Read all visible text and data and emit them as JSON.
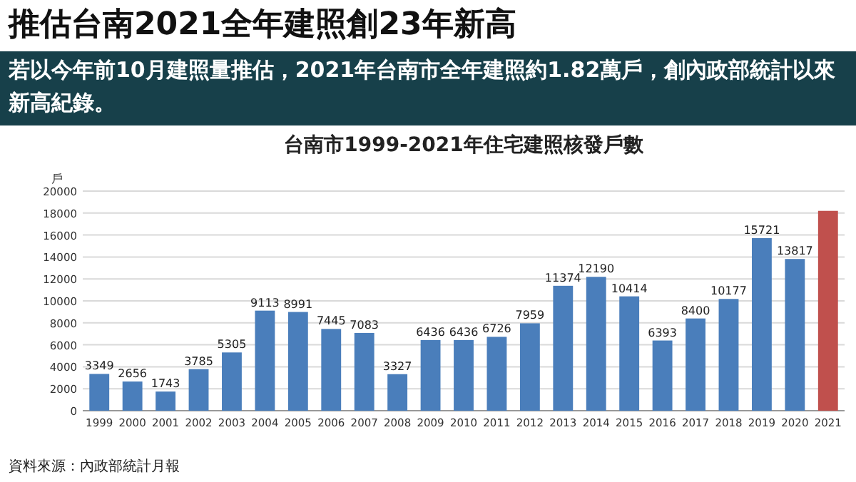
{
  "chart_data": {
    "type": "bar",
    "title": "推估台南2021全年建照創23年新高",
    "subtitle": "若以今年前10月建照量推估，2021年台南市全年建照約1.82萬戶，創內政部統計以來新高紀錄。",
    "xlabel": "台南市1999-2021年住宅建照核發戶數",
    "ylabel": "戶",
    "annotations": [
      "資料來源：內政部統計月報"
    ],
    "categories": [
      "1999",
      "2000",
      "2001",
      "2002",
      "2003",
      "2004",
      "2005",
      "2006",
      "2007",
      "2008",
      "2009",
      "2010",
      "2011",
      "2012",
      "2013",
      "2014",
      "2015",
      "2016",
      "2017",
      "2018",
      "2019",
      "2020",
      "2021"
    ],
    "values": [
      3349,
      2656,
      1743,
      3785,
      5305,
      9113,
      8991,
      7445,
      7083,
      3327,
      6436,
      6436,
      6726,
      7959,
      11374,
      12190,
      10414,
      6393,
      8400,
      10177,
      15721,
      13817,
      18200
    ],
    "value_labels": [
      "3349",
      "2656",
      "1743",
      "3785",
      "5305",
      "9113",
      "8991",
      "7445",
      "7083",
      "3327",
      "6436",
      "6436",
      "6726",
      "7959",
      "11374",
      "12190",
      "10414",
      "6393",
      "8400",
      "10177",
      "15721",
      "13817",
      null
    ],
    "colors": [
      "#4a7ebb",
      "#4a7ebb",
      "#4a7ebb",
      "#4a7ebb",
      "#4a7ebb",
      "#4a7ebb",
      "#4a7ebb",
      "#4a7ebb",
      "#4a7ebb",
      "#4a7ebb",
      "#4a7ebb",
      "#4a7ebb",
      "#4a7ebb",
      "#4a7ebb",
      "#4a7ebb",
      "#4a7ebb",
      "#4a7ebb",
      "#4a7ebb",
      "#4a7ebb",
      "#4a7ebb",
      "#4a7ebb",
      "#4a7ebb",
      "#c0504d"
    ],
    "ylim": [
      0,
      20000
    ],
    "yticks": [
      0,
      2000,
      4000,
      6000,
      8000,
      10000,
      12000,
      14000,
      16000,
      18000,
      20000
    ],
    "grid": "y"
  }
}
